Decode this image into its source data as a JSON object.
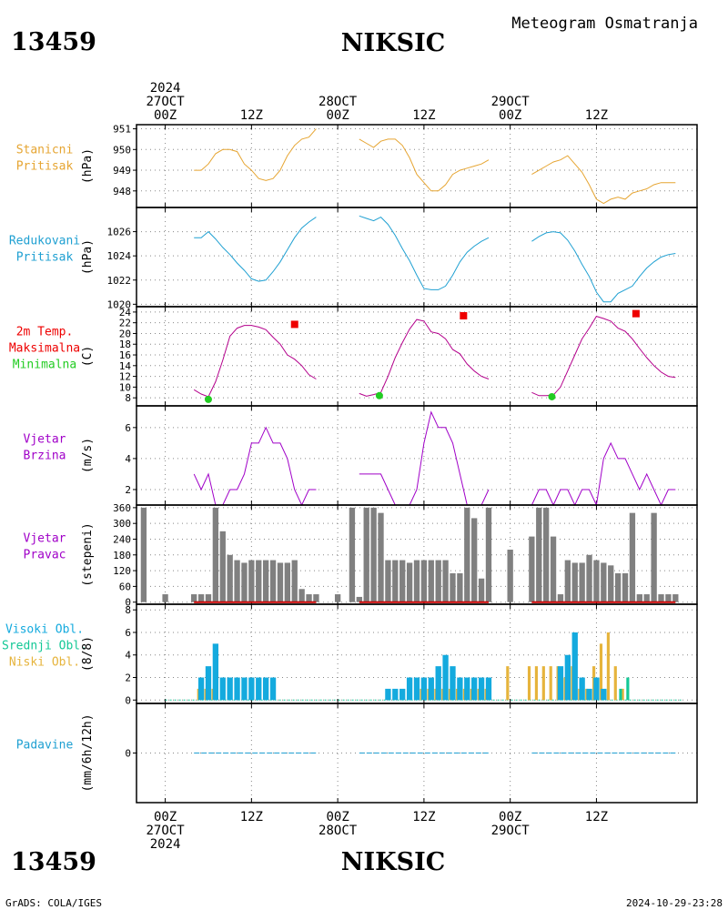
{
  "header": {
    "station_id": "13459",
    "station_name": "NIKSIC",
    "subtitle": "Meteogram Osmatranja"
  },
  "footer": {
    "station_id": "13459",
    "station_name": "NIKSIC",
    "credit": "GrADS: COLA/IGES",
    "timestamp": "2024-10-29-23:28"
  },
  "time_axis": {
    "hours": [
      0,
      72
    ],
    "ticks": [
      {
        "h": 0,
        "top": [
          "2024",
          "27OCT",
          "00Z"
        ],
        "bottom": [
          "00Z",
          "27OCT",
          "2024"
        ]
      },
      {
        "h": 12,
        "top": [
          "12Z"
        ],
        "bottom": [
          "12Z"
        ]
      },
      {
        "h": 24,
        "top": [
          "28OCT",
          "00Z"
        ],
        "bottom": [
          "00Z",
          "28OCT"
        ]
      },
      {
        "h": 36,
        "top": [
          "12Z"
        ],
        "bottom": [
          "12Z"
        ]
      },
      {
        "h": 48,
        "top": [
          "29OCT",
          "00Z"
        ],
        "bottom": [
          "00Z",
          "29OCT"
        ]
      },
      {
        "h": 60,
        "top": [
          "12Z"
        ],
        "bottom": [
          "12Z"
        ]
      }
    ]
  },
  "colors": {
    "pressure": "#e6a532",
    "reduced": "#1fa0d2",
    "temp": "#b4008c",
    "tmax": "#ee0000",
    "tmin": "#22cc22",
    "wind": "#a000c8",
    "dir_bar": "#808080",
    "dir_base": "#c80000",
    "cloud_high": "#14aade",
    "cloud_mid": "#14c896",
    "cloud_low": "#e6b43c",
    "precip": "#1fa0d2",
    "grid": "#888888"
  },
  "chart_data": [
    {
      "id": "station-pressure",
      "type": "line",
      "labels": [
        "Stanicni",
        "Pritisak"
      ],
      "label_color": "#e6a532",
      "unit": "(hPa)",
      "ylim": [
        947.2,
        951.2
      ],
      "yticks": [
        948,
        949,
        950,
        951
      ],
      "series": [
        {
          "color": "#e6a532",
          "x": [
            4,
            5,
            6,
            7,
            8,
            9,
            10,
            11,
            12,
            13,
            14,
            15,
            16,
            17,
            18,
            19,
            20,
            21
          ],
          "y": [
            949,
            949,
            949.3,
            949.8,
            950,
            950,
            949.9,
            949.3,
            949,
            948.6,
            948.5,
            948.6,
            949,
            949.7,
            950.2,
            950.5,
            950.6,
            951
          ]
        },
        {
          "color": "#e6a532",
          "x": [
            27,
            28,
            29,
            30,
            31,
            32,
            33,
            34,
            35,
            36,
            37,
            38,
            39,
            40,
            41,
            42,
            43,
            44,
            45
          ],
          "y": [
            950.5,
            950.3,
            950.1,
            950.4,
            950.5,
            950.5,
            950.2,
            949.6,
            948.8,
            948.4,
            948,
            948,
            948.3,
            948.8,
            949,
            949.1,
            949.2,
            949.3,
            949.5
          ]
        },
        {
          "color": "#e6a532",
          "x": [
            51,
            52,
            53,
            54,
            55,
            56,
            57,
            58,
            59,
            60,
            61,
            62,
            63,
            64,
            65,
            66,
            67,
            68,
            69,
            70,
            71
          ],
          "y": [
            948.8,
            949,
            949.2,
            949.4,
            949.5,
            949.7,
            949.3,
            948.9,
            948.3,
            947.6,
            947.4,
            947.6,
            947.7,
            947.6,
            947.9,
            948,
            948.1,
            948.3,
            948.4,
            948.4,
            948.4
          ]
        }
      ]
    },
    {
      "id": "reduced-pressure",
      "type": "line",
      "labels": [
        "Redukovani",
        "Pritisak"
      ],
      "label_color": "#1fa0d2",
      "unit": "(hPa)",
      "ylim": [
        1019.8,
        1028
      ],
      "yticks": [
        1020,
        1022,
        1024,
        1026
      ],
      "series": [
        {
          "color": "#1fa0d2",
          "x": [
            4,
            5,
            6,
            7,
            8,
            9,
            10,
            11,
            12,
            13,
            14,
            15,
            16,
            17,
            18,
            19,
            20,
            21
          ],
          "y": [
            1025.5,
            1025.5,
            1026,
            1025.4,
            1024.7,
            1024.1,
            1023.4,
            1022.8,
            1022.1,
            1021.9,
            1022,
            1022.7,
            1023.5,
            1024.5,
            1025.5,
            1026.3,
            1026.8,
            1027.2
          ]
        },
        {
          "color": "#1fa0d2",
          "x": [
            27,
            28,
            29,
            30,
            31,
            32,
            33,
            34,
            35,
            36,
            37,
            38,
            39,
            40,
            41,
            42,
            43,
            44,
            45
          ],
          "y": [
            1027.3,
            1027.1,
            1026.9,
            1027.2,
            1026.6,
            1025.7,
            1024.6,
            1023.6,
            1022.4,
            1021.3,
            1021.2,
            1021.2,
            1021.5,
            1022.4,
            1023.5,
            1024.3,
            1024.8,
            1025.2,
            1025.5
          ]
        },
        {
          "color": "#1fa0d2",
          "x": [
            51,
            52,
            53,
            54,
            55,
            56,
            57,
            58,
            59,
            60,
            61,
            62,
            63,
            64,
            65,
            66,
            67,
            68,
            69,
            70,
            71
          ],
          "y": [
            1025.2,
            1025.6,
            1025.9,
            1026,
            1025.9,
            1025.3,
            1024.4,
            1023.3,
            1022.3,
            1021,
            1020.2,
            1020.2,
            1020.9,
            1021.2,
            1021.5,
            1022.3,
            1023,
            1023.5,
            1023.9,
            1024.1,
            1024.2
          ]
        }
      ]
    },
    {
      "id": "temperature",
      "type": "line",
      "labels": [
        "2m Temp.",
        "Maksimalna",
        "Minimalna"
      ],
      "label_colors": [
        "#ee0000",
        "#ee0000",
        "#22cc22"
      ],
      "unit": "(C)",
      "ylim": [
        6.5,
        25
      ],
      "yticks": [
        8,
        10,
        12,
        14,
        16,
        18,
        20,
        22,
        24
      ],
      "series": [
        {
          "color": "#b4008c",
          "x": [
            4,
            5,
            6,
            7,
            8,
            9,
            10,
            11,
            12,
            13,
            14,
            15,
            16,
            17,
            18,
            19,
            20,
            21
          ],
          "y": [
            9.5,
            8.7,
            8.2,
            11,
            15,
            19.5,
            21,
            21.5,
            21.5,
            21.2,
            20.7,
            19.3,
            18,
            16,
            15.2,
            14,
            12.3,
            11.5
          ]
        },
        {
          "color": "#b4008c",
          "x": [
            27,
            28,
            29,
            30,
            31,
            32,
            33,
            34,
            35,
            36,
            37,
            38,
            39,
            40,
            41,
            42,
            43,
            44,
            45
          ],
          "y": [
            8.8,
            8.3,
            8.6,
            9,
            12,
            15.5,
            18.3,
            20.8,
            22.6,
            22.3,
            20.3,
            20,
            19,
            17,
            16.2,
            14.3,
            13,
            12,
            11.5
          ]
        },
        {
          "color": "#b4008c",
          "x": [
            51,
            52,
            53,
            54,
            55,
            56,
            57,
            58,
            59,
            60,
            61,
            62,
            63,
            64,
            65,
            66,
            67,
            68,
            69,
            70,
            71
          ],
          "y": [
            9,
            8.4,
            8.4,
            8.5,
            10,
            13,
            16,
            19,
            21,
            23.2,
            22.8,
            22.3,
            21,
            20.4,
            19,
            17.2,
            15.5,
            14,
            12.8,
            12,
            11.8
          ]
        }
      ],
      "max_points": [
        {
          "x": 18,
          "y": 21.7
        },
        {
          "x": 41.5,
          "y": 23.3
        },
        {
          "x": 65.5,
          "y": 23.7
        }
      ],
      "min_points": [
        {
          "x": 6,
          "y": 7.7
        },
        {
          "x": 29.8,
          "y": 8.4
        },
        {
          "x": 53.8,
          "y": 8.2
        }
      ]
    },
    {
      "id": "wind-speed",
      "type": "line",
      "labels": [
        "Vjetar",
        "Brzina"
      ],
      "label_color": "#a000c8",
      "unit": "(m/s)",
      "ylim": [
        1,
        7.4
      ],
      "yticks": [
        2,
        4,
        6
      ],
      "series": [
        {
          "color": "#a000c8",
          "x": [
            4,
            5,
            6,
            7,
            8,
            9,
            10,
            11,
            12,
            13,
            14,
            15,
            16,
            17,
            18,
            19,
            20,
            21
          ],
          "y": [
            3,
            2,
            3,
            1,
            1,
            2,
            2,
            3,
            5,
            5,
            6,
            5,
            5,
            4,
            2,
            1,
            2,
            2
          ]
        },
        {
          "color": "#a000c8",
          "x": [
            27,
            28,
            29,
            30,
            31,
            32,
            33,
            34,
            35,
            36,
            37,
            38,
            39,
            40,
            41,
            42,
            43,
            44,
            45
          ],
          "y": [
            3,
            3,
            3,
            3,
            2,
            1,
            1,
            1,
            2,
            5,
            7,
            6,
            6,
            5,
            3,
            1,
            1,
            1,
            2
          ]
        },
        {
          "color": "#a000c8",
          "x": [
            51,
            52,
            53,
            54,
            55,
            56,
            57,
            58,
            59,
            60,
            61,
            62,
            63,
            64,
            65,
            66,
            67,
            68,
            69,
            70,
            71
          ],
          "y": [
            1,
            2,
            2,
            1,
            2,
            2,
            1,
            2,
            2,
            1,
            4,
            5,
            4,
            4,
            3,
            2,
            3,
            2,
            1,
            2,
            2
          ]
        }
      ]
    },
    {
      "id": "wind-direction",
      "type": "bar",
      "labels": [
        "Vjetar",
        "Pravac"
      ],
      "label_color": "#a000c8",
      "unit": "(stepeni)",
      "ylim": [
        -8,
        370
      ],
      "yticks": [
        0,
        60,
        120,
        180,
        240,
        300,
        360
      ],
      "bar_color": "#808080",
      "x": [
        -3,
        0,
        4,
        5,
        6,
        7,
        8,
        9,
        10,
        11,
        12,
        13,
        14,
        15,
        16,
        17,
        18,
        19,
        20,
        21,
        24,
        26,
        27,
        28,
        29,
        30,
        31,
        32,
        33,
        34,
        35,
        36,
        37,
        38,
        39,
        40,
        41,
        42,
        43,
        44,
        45,
        48,
        51,
        52,
        53,
        54,
        55,
        56,
        57,
        58,
        59,
        60,
        61,
        62,
        63,
        64,
        65,
        66,
        67,
        68,
        69,
        70,
        71
      ],
      "values": [
        360,
        30,
        30,
        30,
        30,
        360,
        270,
        180,
        160,
        150,
        160,
        160,
        160,
        160,
        150,
        150,
        160,
        50,
        30,
        30,
        30,
        360,
        20,
        360,
        360,
        340,
        160,
        160,
        160,
        150,
        160,
        160,
        160,
        160,
        160,
        110,
        110,
        360,
        320,
        90,
        360,
        200,
        250,
        360,
        360,
        250,
        30,
        160,
        150,
        150,
        180,
        160,
        150,
        140,
        110,
        110,
        340,
        30,
        30,
        340,
        30,
        30,
        30
      ]
    },
    {
      "id": "cloud-cover",
      "type": "bar",
      "labels": [
        "Visoki Obl.",
        "Srednji Obl.",
        "Niski Obl."
      ],
      "label_colors": [
        "#14aade",
        "#14c896",
        "#e6b43c"
      ],
      "unit": "(8/8)",
      "ylim": [
        -0.3,
        8.5
      ],
      "yticks": [
        0,
        2,
        4,
        6,
        8
      ],
      "series": [
        {
          "name": "Visoki Obl.",
          "color": "#14aade",
          "x": [
            5,
            6,
            7,
            8,
            9,
            10,
            11,
            12,
            13,
            14,
            15,
            31,
            32,
            33,
            34,
            35,
            36,
            37,
            38,
            39,
            40,
            41,
            42,
            43,
            44,
            45,
            55,
            56,
            57,
            58,
            59,
            60,
            61,
            62,
            63,
            64
          ],
          "values": [
            2,
            3,
            5,
            2,
            2,
            2,
            2,
            2,
            2,
            2,
            2,
            1,
            1,
            1,
            2,
            2,
            2,
            2,
            3,
            4,
            3,
            2,
            2,
            2,
            2,
            2,
            3,
            4,
            6,
            2,
            1,
            2,
            1,
            0,
            0,
            0
          ]
        },
        {
          "name": "Srednji Obl.",
          "color": "#14c896",
          "x": [
            63,
            64
          ],
          "values": [
            1,
            2
          ]
        },
        {
          "name": "Niski Obl.",
          "color": "#e6b43c",
          "x": [
            5,
            6,
            7,
            36,
            37,
            38,
            39,
            40,
            41,
            42,
            43,
            44,
            45,
            48,
            51,
            52,
            53,
            54,
            55,
            56,
            57,
            58,
            59,
            60,
            61,
            62,
            63,
            64
          ],
          "values": [
            1,
            1,
            1,
            1,
            1,
            1,
            1,
            1,
            1,
            1,
            1,
            1,
            1,
            3,
            3,
            3,
            3,
            3,
            3,
            2,
            3,
            1,
            1,
            3,
            5,
            6,
            3,
            1
          ]
        }
      ]
    },
    {
      "id": "precipitation",
      "type": "line",
      "labels": [
        "Padavine"
      ],
      "label_color": "#1fa0d2",
      "unit": "(mm/6h/12h)",
      "ylim": [
        -4.5,
        4.5
      ],
      "yticks": [
        0
      ],
      "series": [
        {
          "color": "#1fa0d2",
          "x": [
            4,
            21
          ],
          "y": [
            0,
            0
          ]
        },
        {
          "color": "#1fa0d2",
          "x": [
            27,
            45
          ],
          "y": [
            0,
            0
          ]
        },
        {
          "color": "#1fa0d2",
          "x": [
            51,
            71
          ],
          "y": [
            0,
            0
          ]
        }
      ]
    }
  ]
}
